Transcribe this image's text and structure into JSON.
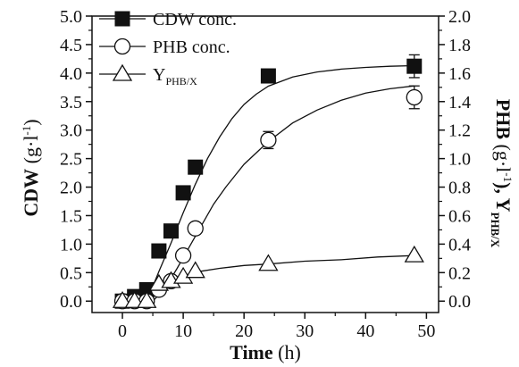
{
  "chart_data": {
    "type": "scatter",
    "xlabel": {
      "main": "Time",
      "unit": "(h)"
    },
    "ylabel_left": {
      "main": "CDW",
      "unit": "(g·l",
      "sup": "-1",
      "close": ")"
    },
    "ylabel_right": {
      "main": "PHB",
      "unit": "(g·l",
      "sup": "-1",
      "close": "), Y",
      "sub": "PHB/X"
    },
    "xlim": [
      -5,
      52
    ],
    "ylim_left": [
      -0.2,
      5.0
    ],
    "ylim_right": [
      -0.08,
      2.0
    ],
    "x_ticks": [
      "0",
      "10",
      "20",
      "30",
      "40",
      "50"
    ],
    "y_left_ticks": [
      "0.0",
      "0.5",
      "1.0",
      "1.5",
      "2.0",
      "2.5",
      "3.0",
      "3.5",
      "4.0",
      "4.5",
      "5.0"
    ],
    "y_right_ticks": [
      "0.0",
      "0.2",
      "0.4",
      "0.6",
      "0.8",
      "1.0",
      "1.2",
      "1.4",
      "1.6",
      "1.8",
      "2.0"
    ],
    "grid": false,
    "legend_position": "top-left",
    "series": [
      {
        "name": "CDW conc.",
        "axis": "left",
        "marker": "square-filled",
        "color": "#111111",
        "x": [
          0,
          2,
          4,
          6,
          8,
          10,
          12,
          24,
          48
        ],
        "y": [
          0.0,
          0.08,
          0.2,
          0.88,
          1.23,
          1.9,
          2.35,
          3.95,
          4.12
        ],
        "err": [
          0,
          0,
          0,
          0,
          0,
          0,
          0,
          0.1,
          0.2
        ]
      },
      {
        "name": "PHB conc.",
        "axis": "right",
        "marker": "circle-open",
        "color": "#111111",
        "x": [
          0,
          2,
          4,
          6,
          8,
          10,
          12,
          24,
          48
        ],
        "y": [
          0.0,
          0.0,
          0.0,
          0.08,
          0.14,
          0.32,
          0.51,
          1.13,
          1.43
        ],
        "err": [
          0,
          0,
          0,
          0,
          0,
          0,
          0.04,
          0.06,
          0.08
        ]
      },
      {
        "name": "Y",
        "name_sub": "PHB/X",
        "axis": "right",
        "marker": "triangle-open",
        "color": "#111111",
        "x": [
          0,
          2,
          4,
          6,
          8,
          10,
          12,
          24,
          48
        ],
        "y": [
          0.0,
          0.0,
          0.0,
          0.12,
          0.14,
          0.17,
          0.21,
          0.26,
          0.32
        ],
        "err": [
          0,
          0,
          0,
          0,
          0,
          0,
          0,
          0,
          0
        ]
      }
    ],
    "fit_curves": [
      {
        "series": "CDW conc.",
        "axis": "left",
        "x": [
          4,
          6,
          8,
          10,
          12,
          14,
          16,
          18,
          20,
          22,
          24,
          28,
          32,
          36,
          40,
          44,
          48
        ],
        "y": [
          0.0,
          0.52,
          1.02,
          1.55,
          2.05,
          2.5,
          2.88,
          3.2,
          3.45,
          3.63,
          3.77,
          3.93,
          4.02,
          4.07,
          4.1,
          4.12,
          4.13
        ]
      },
      {
        "series": "PHB conc.",
        "axis": "right",
        "x": [
          5,
          7,
          9,
          11,
          13,
          15,
          17,
          20,
          24,
          28,
          32,
          36,
          40,
          44,
          48
        ],
        "y": [
          0.0,
          0.09,
          0.23,
          0.38,
          0.53,
          0.68,
          0.8,
          0.96,
          1.12,
          1.25,
          1.34,
          1.41,
          1.46,
          1.49,
          1.51
        ]
      },
      {
        "series": "Y",
        "axis": "right",
        "x": [
          5,
          7,
          9,
          11,
          13,
          16,
          20,
          24,
          30,
          36,
          42,
          48
        ],
        "y": [
          0.05,
          0.12,
          0.16,
          0.19,
          0.21,
          0.23,
          0.25,
          0.26,
          0.28,
          0.29,
          0.31,
          0.32
        ]
      }
    ]
  }
}
